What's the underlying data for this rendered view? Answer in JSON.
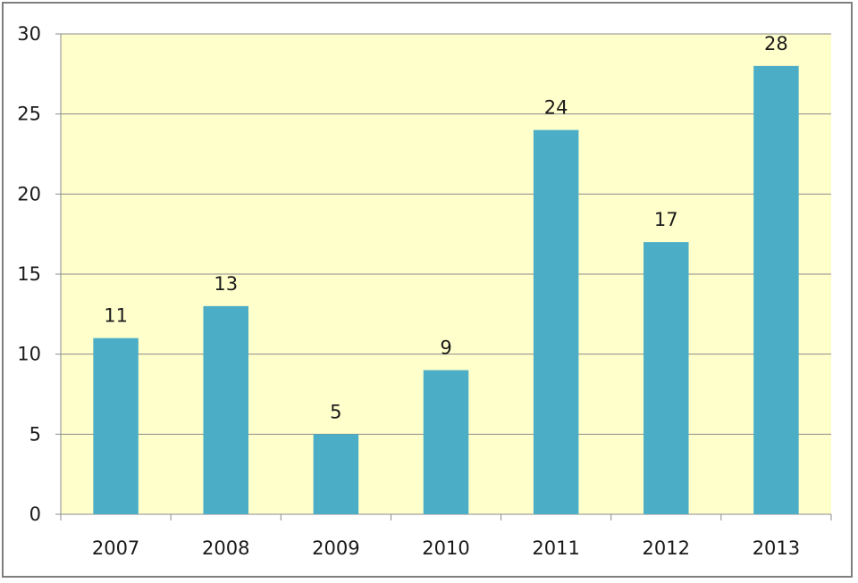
{
  "chart_data": {
    "type": "bar",
    "categories": [
      "2007",
      "2008",
      "2009",
      "2010",
      "2011",
      "2012",
      "2013"
    ],
    "values": [
      11,
      13,
      5,
      9,
      24,
      17,
      28
    ],
    "title": "",
    "xlabel": "",
    "ylabel": "",
    "ylim": [
      0,
      30
    ],
    "yticks": [
      0,
      5,
      10,
      15,
      20,
      25,
      30
    ],
    "grid": true,
    "legend": "none",
    "colors": {
      "bar": "#4badc6",
      "plot_background": "#ffffcc",
      "gridline": "#8c8c8c",
      "axis": "#8c8c8c"
    }
  }
}
